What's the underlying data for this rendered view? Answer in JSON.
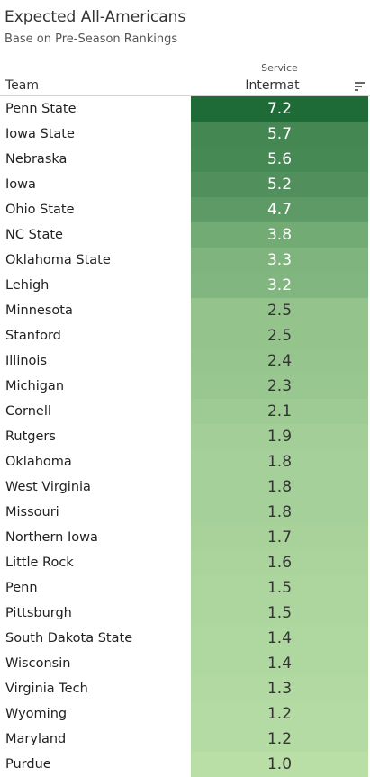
{
  "title": "Expected All-Americans",
  "subtitle": "Base on Pre-Season Rankings",
  "header": {
    "dimension_label": "Team",
    "group_label": "Service",
    "measure_label": "Intermat",
    "sort_icon": "sort-descending-icon"
  },
  "colors": {
    "scale_low": "#b9dfa7",
    "scale_high": "#1f6b38",
    "text_dark": "#333333",
    "text_light": "#ffffff"
  },
  "chart_data": {
    "type": "table",
    "columns": [
      "Team",
      "Intermat"
    ],
    "rows": [
      {
        "team": "Penn State",
        "value": "7.2"
      },
      {
        "team": "Iowa State",
        "value": "5.7"
      },
      {
        "team": "Nebraska",
        "value": "5.6"
      },
      {
        "team": "Iowa",
        "value": "5.2"
      },
      {
        "team": "Ohio State",
        "value": "4.7"
      },
      {
        "team": "NC State",
        "value": "3.8"
      },
      {
        "team": "Oklahoma State",
        "value": "3.3"
      },
      {
        "team": "Lehigh",
        "value": "3.2"
      },
      {
        "team": "Minnesota",
        "value": "2.5"
      },
      {
        "team": "Stanford",
        "value": "2.5"
      },
      {
        "team": "Illinois",
        "value": "2.4"
      },
      {
        "team": "Michigan",
        "value": "2.3"
      },
      {
        "team": "Cornell",
        "value": "2.1"
      },
      {
        "team": "Rutgers",
        "value": "1.9"
      },
      {
        "team": "Oklahoma",
        "value": "1.8"
      },
      {
        "team": "West Virginia",
        "value": "1.8"
      },
      {
        "team": "Missouri",
        "value": "1.8"
      },
      {
        "team": "Northern Iowa",
        "value": "1.7"
      },
      {
        "team": "Little Rock",
        "value": "1.6"
      },
      {
        "team": "Penn",
        "value": "1.5"
      },
      {
        "team": "Pittsburgh",
        "value": "1.5"
      },
      {
        "team": "South Dakota State",
        "value": "1.4"
      },
      {
        "team": "Wisconsin",
        "value": "1.4"
      },
      {
        "team": "Virginia Tech",
        "value": "1.3"
      },
      {
        "team": "Wyoming",
        "value": "1.2"
      },
      {
        "team": "Maryland",
        "value": "1.2"
      },
      {
        "team": "Purdue",
        "value": "1.0"
      }
    ]
  }
}
